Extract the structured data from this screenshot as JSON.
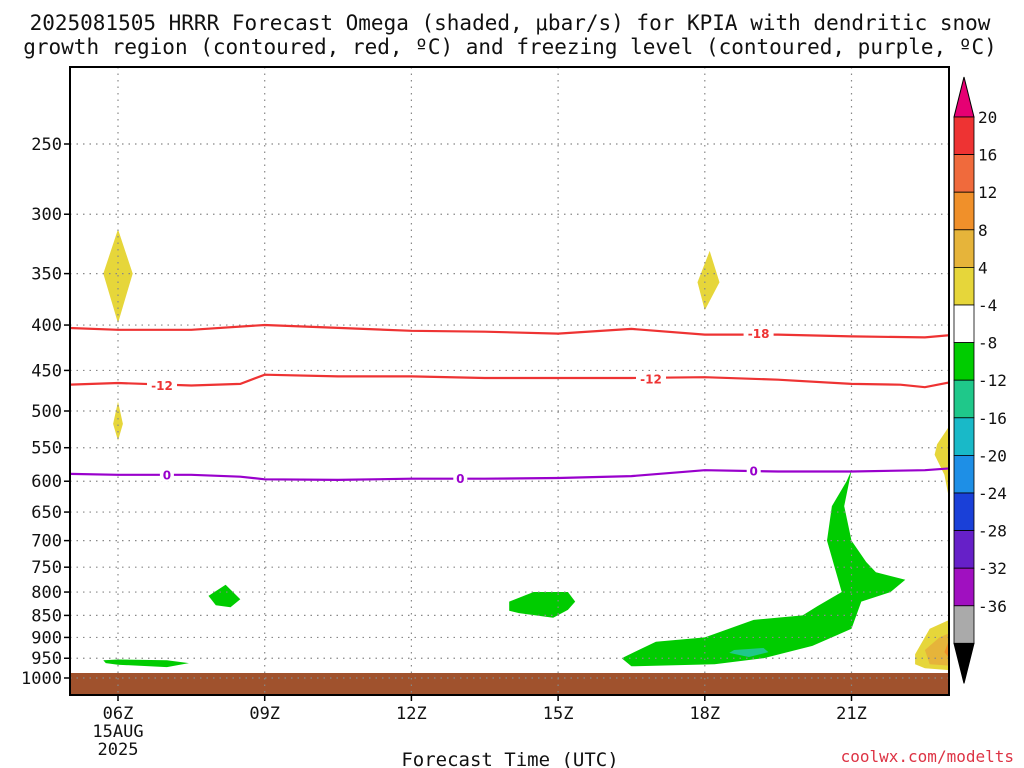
{
  "title_line1": "2025081505 HRRR Forecast Omega (shaded, μbar/s) for KPIA with dendritic snow",
  "title_line2": "growth region (contoured, red, ºC) and freezing level (contoured, purple, ºC)",
  "x_axis_label": "Forecast Time (UTC)",
  "credit": "coolwx.com/modelts",
  "colors": {
    "ground": "#a0522d",
    "dgz_contour": "#ee3333",
    "freezing_contour": "#9900cc",
    "grid": "#888888"
  },
  "chart_data": {
    "type": "heatmap",
    "x_unit": "hour UTC",
    "y_unit": "hPa",
    "xlim": [
      4.5,
      24
    ],
    "ylim": [
      1000,
      200
    ],
    "x_ticks": [
      {
        "value": 6,
        "label": "06Z",
        "sub1": "15AUG",
        "sub2": "2025"
      },
      {
        "value": 9,
        "label": "09Z"
      },
      {
        "value": 12,
        "label": "12Z"
      },
      {
        "value": 15,
        "label": "15Z"
      },
      {
        "value": 18,
        "label": "18Z"
      },
      {
        "value": 21,
        "label": "21Z"
      }
    ],
    "y_ticks": [
      250,
      300,
      350,
      400,
      450,
      500,
      550,
      600,
      650,
      700,
      750,
      800,
      850,
      900,
      950,
      1000
    ],
    "colorbar": {
      "unit": "μbar/s",
      "top_arrow_color": "#e60073",
      "bottom_arrow_color": "#000000",
      "ticks": [
        20,
        16,
        12,
        8,
        4,
        -4,
        -8,
        -12,
        -16,
        -20,
        -24,
        -28,
        -32,
        -36
      ],
      "bins": [
        {
          "color": "#ee3333"
        },
        {
          "color": "#f06a3c"
        },
        {
          "color": "#f0902a"
        },
        {
          "color": "#e6b43a"
        },
        {
          "color": "#e6d63a"
        },
        {
          "color": "#ffffff"
        },
        {
          "color": "#00cc00"
        },
        {
          "color": "#1fc88a"
        },
        {
          "color": "#19b9c8"
        },
        {
          "color": "#1e8fe6"
        },
        {
          "color": "#1a40d8"
        },
        {
          "color": "#6620c8"
        },
        {
          "color": "#a010c0"
        },
        {
          "color": "#aaaaaa"
        }
      ]
    },
    "contours": [
      {
        "name": "-18",
        "color": "#ee3333",
        "x": [
          4.5,
          6,
          7.5,
          9,
          10.5,
          12,
          13.5,
          15,
          16.5,
          18,
          19.5,
          21,
          22.5,
          24
        ],
        "y": [
          402,
          405,
          405,
          400,
          403,
          406,
          407,
          409,
          404,
          410,
          410,
          412,
          413,
          406
        ],
        "labels": [
          {
            "x": 19.1,
            "y": 409,
            "text": "-18"
          }
        ]
      },
      {
        "name": "-12",
        "color": "#ee3333",
        "x": [
          4.5,
          6,
          7.5,
          8.5,
          9,
          10.5,
          12,
          13.5,
          15,
          16.5,
          18,
          19.5,
          21,
          22,
          22.5,
          24
        ],
        "y": [
          468,
          465,
          468,
          466,
          455,
          457,
          457,
          459,
          459,
          459,
          458,
          461,
          466,
          467,
          470,
          453
        ],
        "labels": [
          {
            "x": 6.9,
            "y": 468,
            "text": "-12"
          },
          {
            "x": 16.9,
            "y": 460,
            "text": "-12"
          }
        ]
      },
      {
        "name": "0",
        "color": "#9900cc",
        "x": [
          4.5,
          6,
          7.5,
          8.5,
          9,
          10.5,
          12,
          13.5,
          15,
          16.5,
          18,
          19.5,
          21,
          22.5,
          24
        ],
        "y": [
          588,
          590,
          590,
          593,
          597,
          598,
          596,
          596,
          595,
          592,
          583,
          585,
          585,
          583,
          575
        ],
        "labels": [
          {
            "x": 7,
            "y": 590,
            "text": "0"
          },
          {
            "x": 13,
            "y": 596,
            "text": "0"
          },
          {
            "x": 19,
            "y": 584,
            "text": "0"
          }
        ]
      }
    ],
    "filled_regions": [
      {
        "value": 4,
        "color": "#e6d63a",
        "x": [
          6,
          6.3,
          6,
          5.7
        ],
        "y": [
          312,
          350,
          398,
          350
        ]
      },
      {
        "value": 4,
        "color": "#e6d63a",
        "x": [
          6,
          6.1,
          6,
          5.9
        ],
        "y": [
          488,
          517,
          540,
          517
        ]
      },
      {
        "value": 4,
        "color": "#e6d63a",
        "x": [
          18.1,
          18.3,
          18,
          17.85
        ],
        "y": [
          330,
          358,
          385,
          358
        ]
      },
      {
        "value": -4,
        "color": "#00cc00",
        "x": [
          8.2,
          8.5,
          8.3,
          8.0,
          7.85
        ],
        "y": [
          785,
          815,
          832,
          828,
          808
        ]
      },
      {
        "value": -4,
        "color": "#00cc00",
        "x": [
          14.5,
          15.2,
          15.35,
          15.2,
          14.9,
          14.2,
          14.0,
          14.0
        ],
        "y": [
          800,
          800,
          820,
          838,
          855,
          845,
          840,
          820
        ]
      },
      {
        "value": -4,
        "color": "#00cc00",
        "x": [
          5.7,
          6.0,
          7.0,
          7.45,
          7.0,
          6.0,
          5.75
        ],
        "y": [
          955,
          953,
          955,
          962,
          972,
          966,
          962
        ]
      },
      {
        "value": -4,
        "color": "#00cc00",
        "x": [
          20.9,
          21.0,
          20.85,
          21.0,
          21.3,
          21.5,
          22.1,
          21.8,
          21.2,
          21.0,
          20.2,
          19.2,
          18.2,
          16.5,
          16.3,
          17.0,
          18.0,
          19.0,
          20.0,
          20.3,
          20.8,
          20.5,
          20.6
        ],
        "y": [
          600,
          583,
          640,
          700,
          740,
          760,
          775,
          800,
          820,
          880,
          920,
          950,
          965,
          970,
          950,
          910,
          900,
          860,
          850,
          830,
          800,
          700,
          640
        ]
      },
      {
        "value": -8,
        "color": "#1fc88a",
        "x": [
          18.6,
          19.2,
          19.3,
          18.9,
          18.5
        ],
        "y": [
          930,
          925,
          935,
          947,
          937
        ]
      },
      {
        "value": -4,
        "color": "#00cc00",
        "x": [
          24,
          23.6,
          23.4,
          23.35,
          23.5,
          23.8,
          24
        ],
        "y": [
          245,
          258,
          280,
          300,
          320,
          345,
          365
        ]
      },
      {
        "value": -8,
        "color": "#1fc88a",
        "x": [
          23.85,
          24,
          23.85
        ],
        "y": [
          288,
          296,
          305
        ]
      },
      {
        "value": 4,
        "color": "#e6d63a",
        "x": [
          23.0,
          23.4,
          23.75,
          24,
          24,
          23.8,
          23.4,
          23.1,
          23.0,
          22.9,
          22.7,
          22.75
        ],
        "y": [
          520,
          525,
          540,
          560,
          760,
          735,
          700,
          650,
          630,
          590,
          560,
          545
        ]
      },
      {
        "value": 4,
        "color": "#e6d63a",
        "x": [
          22.6,
          23.0,
          23.5,
          23.8,
          24,
          24,
          23.0,
          22.5,
          22.3,
          22.3
        ],
        "y": [
          880,
          860,
          850,
          845,
          835,
          982,
          980,
          975,
          965,
          940
        ]
      },
      {
        "value": 8,
        "color": "#e6b43a",
        "x": [
          22.8,
          23.2,
          23.6,
          24,
          24,
          23.2,
          22.6,
          22.5
        ],
        "y": [
          900,
          880,
          875,
          862,
          978,
          970,
          965,
          930
        ]
      },
      {
        "value": 12,
        "color": "#f0902a",
        "x": [
          23.0,
          23.4,
          24,
          24,
          23.5,
          23.0,
          22.9
        ],
        "y": [
          905,
          895,
          885,
          965,
          955,
          950,
          935
        ]
      },
      {
        "value": 16,
        "color": "#f06a3c",
        "x": [
          23.5,
          24,
          24,
          23.5,
          23.4
        ],
        "y": [
          915,
          905,
          945,
          942,
          930
        ]
      },
      {
        "value": 20,
        "color": "#ee3333",
        "x": [
          23.8,
          23.95,
          23.85,
          23.75
        ],
        "y": [
          918,
          930,
          942,
          930
        ]
      }
    ]
  }
}
